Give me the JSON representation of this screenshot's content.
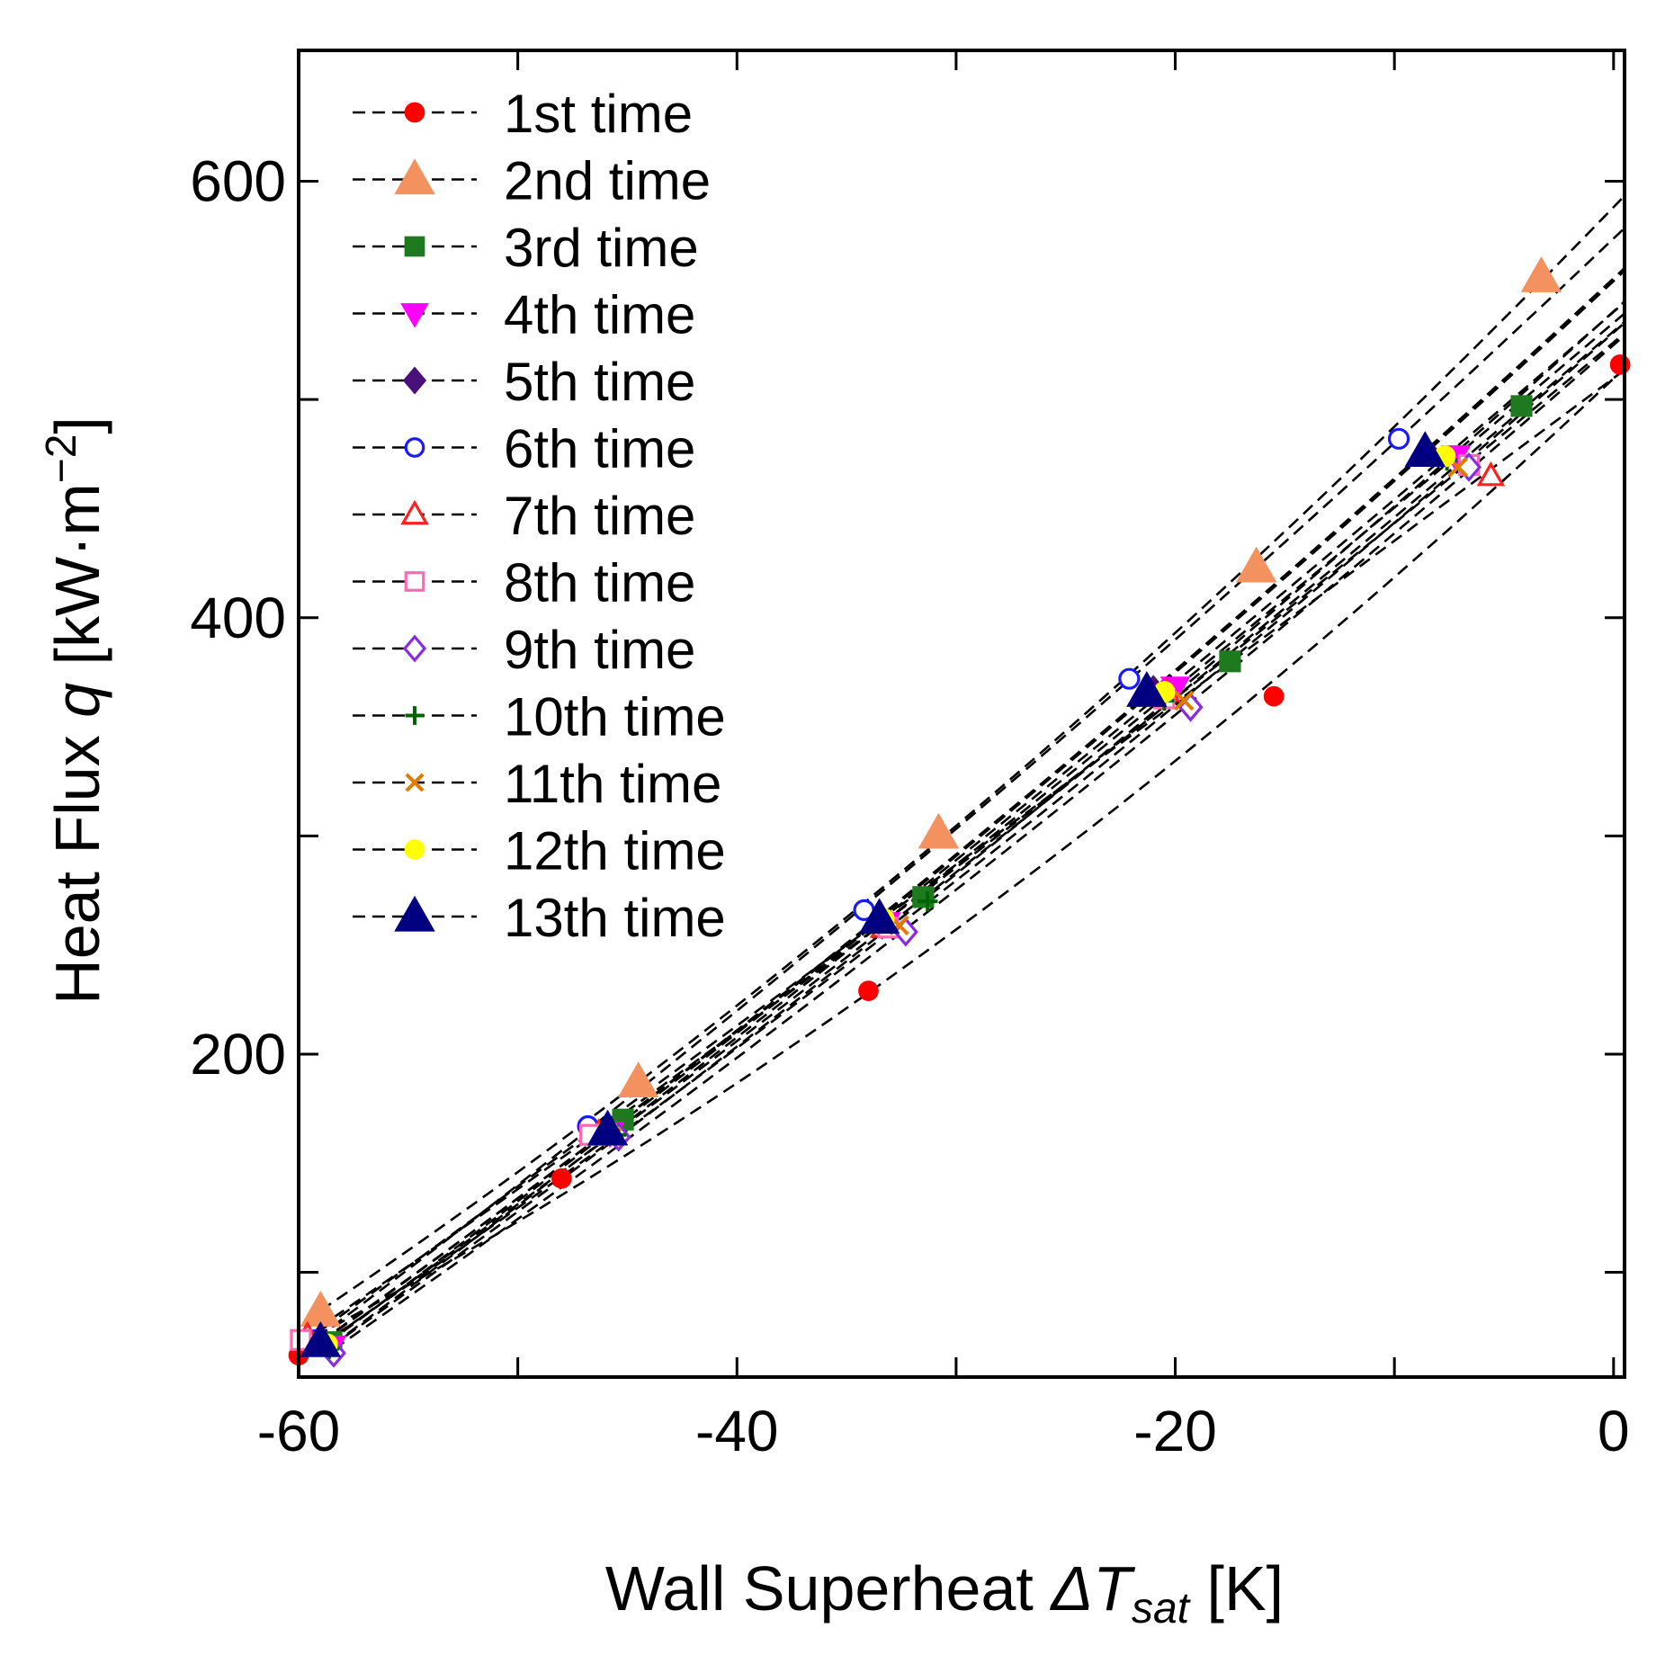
{
  "chart_data": {
    "type": "scatter",
    "title": "",
    "xlabel": {
      "main": "Wall Superheat ",
      "delta": "ΔT",
      "sub": "sat",
      "unit": " [K]"
    },
    "ylabel": {
      "main": "Heat Flux ",
      "var": "q",
      "unit_open": " [kW·m",
      "sup": "−2",
      "unit_close": "]"
    },
    "xlim": [
      -60,
      0.5
    ],
    "ylim": [
      52,
      660
    ],
    "xticks": [
      -60,
      -40,
      -20,
      0
    ],
    "xtick_labels": [
      "-60",
      "-40",
      "-20",
      "0"
    ],
    "yticks": [
      200,
      400,
      600
    ],
    "ytick_labels": [
      "200",
      "400",
      "600"
    ],
    "legend_position": "top-left",
    "line_style": "dashed fit, black",
    "series": [
      {
        "name": "1st time",
        "marker": "circle",
        "filled": true,
        "color": "#ff0000",
        "x": [
          -60,
          -48,
          -34,
          -15.5,
          0.3
        ],
        "y": [
          62,
          143,
          229,
          364,
          516
        ]
      },
      {
        "name": "2nd time",
        "marker": "triangle-up",
        "filled": true,
        "color": "#f4925f",
        "x": [
          -59,
          -44.5,
          -30.8,
          -16.3,
          -3.3
        ],
        "y": [
          82,
          187,
          301,
          423,
          556
        ]
      },
      {
        "name": "3rd time",
        "marker": "square",
        "filled": true,
        "color": "#1f7a1f",
        "x": [
          -58.5,
          -45.2,
          -31.5,
          -17.5,
          -4.2
        ],
        "y": [
          68,
          170,
          272,
          380,
          497
        ]
      },
      {
        "name": "4th time",
        "marker": "triangle-down",
        "filled": true,
        "color": "#ff00ff",
        "x": [
          -58.5,
          -45.8,
          -33.2,
          -20,
          -7.2
        ],
        "y": [
          66,
          164,
          260,
          368,
          474
        ]
      },
      {
        "name": "5th time",
        "marker": "diamond",
        "filled": true,
        "color": "#4b0f7a",
        "x": [
          -59,
          -46,
          -33.5,
          -21,
          -8.5
        ],
        "y": [
          68,
          165,
          261,
          367,
          476
        ]
      },
      {
        "name": "6th time",
        "marker": "circle",
        "filled": false,
        "color": "#1a1aff",
        "x": [
          -59.2,
          -46.8,
          -34.2,
          -22.1,
          -9.8
        ],
        "y": [
          69,
          167,
          266,
          372,
          482
        ]
      },
      {
        "name": "7th time",
        "marker": "triangle-up",
        "filled": false,
        "color": "#ff2020",
        "x": [
          -59.6,
          -46.3,
          -33.3,
          -20.4,
          -5.6
        ],
        "y": [
          71,
          164,
          258,
          366,
          465
        ]
      },
      {
        "name": "8th time",
        "marker": "square",
        "filled": false,
        "color": "#ff69b4",
        "x": [
          -59.9,
          -46.7,
          -33.1,
          -20.5,
          -6.6
        ],
        "y": [
          69,
          163,
          258,
          363,
          470
        ]
      },
      {
        "name": "9th time",
        "marker": "diamond",
        "filled": false,
        "color": "#8a2be2",
        "x": [
          -58.4,
          -45.4,
          -32.3,
          -19.3,
          -6.6
        ],
        "y": [
          63,
          162,
          256,
          359,
          469
        ]
      },
      {
        "name": "10th time",
        "marker": "plus",
        "filled": false,
        "color": "#006400",
        "x": [
          -58.6,
          -45.5,
          -31.3,
          -20.5,
          -7.6
        ],
        "y": [
          65,
          163,
          270,
          362,
          472
        ]
      },
      {
        "name": "11th time",
        "marker": "x",
        "filled": false,
        "color": "#e07b00",
        "x": [
          -59,
          -45.7,
          -32.6,
          -19.6,
          -7.1
        ],
        "y": [
          66,
          162,
          259,
          362,
          469
        ]
      },
      {
        "name": "12th time",
        "marker": "circle",
        "filled": true,
        "color": "#ffff00",
        "x": [
          -58.7,
          -45.9,
          -33.3,
          -20.5,
          -7.7
        ],
        "y": [
          67,
          165,
          262,
          366,
          474
        ]
      },
      {
        "name": "13th time",
        "marker": "triangle-up",
        "filled": true,
        "color": "#000080",
        "x": [
          -59,
          -45.9,
          -33.5,
          -21.3,
          -8.6
        ],
        "y": [
          68,
          165,
          262,
          366,
          476
        ]
      }
    ]
  }
}
